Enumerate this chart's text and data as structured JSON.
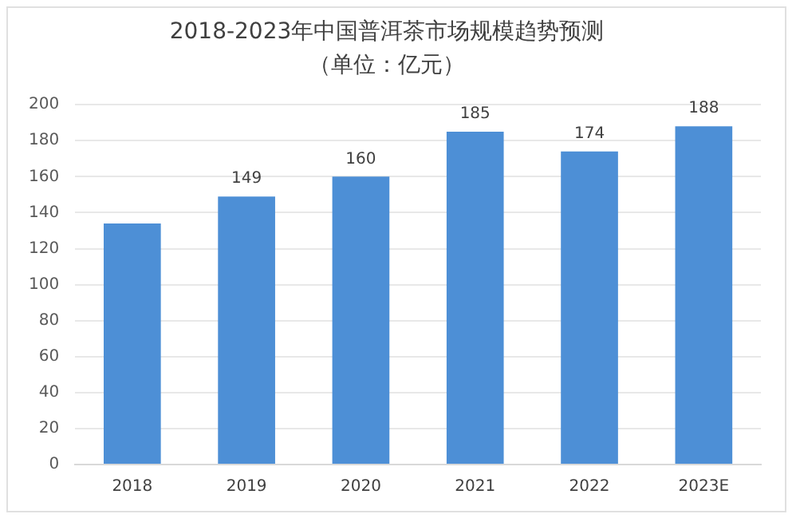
{
  "chart_data": {
    "type": "bar",
    "title": "2018-2023年中国普洱茶市场规模趋势预测",
    "subtitle": "（单位：亿元）",
    "categories": [
      "2018",
      "2019",
      "2020",
      "2021",
      "2022",
      "2023E"
    ],
    "values": [
      134,
      149,
      160,
      185,
      174,
      188
    ],
    "value_labels": [
      null,
      "149",
      "160",
      "185",
      "174",
      "188"
    ],
    "color": "#4d8fd6",
    "ylim": [
      0,
      200
    ],
    "yticks": [
      0,
      20,
      40,
      60,
      80,
      100,
      120,
      140,
      160,
      180,
      200
    ],
    "grid": "y",
    "legend": false
  }
}
